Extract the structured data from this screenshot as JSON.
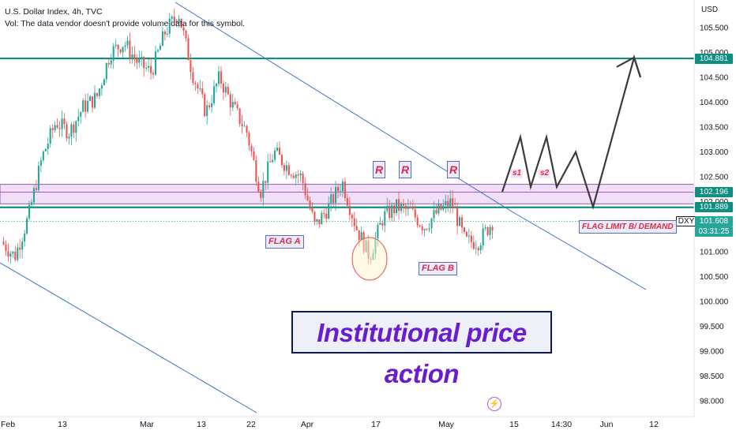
{
  "header": {
    "symbol_line": "U.S. Dollar Index, 4h, TVC",
    "volume_note": "Vol: The data vendor doesn't provide volume data for this symbol."
  },
  "currency_label": "USD",
  "price_tags": {
    "target": "104.881",
    "zone_top": "102.196",
    "flag_limit": "101.889",
    "symbol_short": "DXY",
    "last_price": "101.608",
    "countdown": "03:31:25"
  },
  "annotations": {
    "flag_a": "FLAG A",
    "flag_b": "FLAG B",
    "r1": "R",
    "r2": "R",
    "r3": "R",
    "s1": "s1",
    "s2": "s2",
    "flag_limit": "FLAG LIMIT B/ DEMAND",
    "title": "Institutional price action"
  },
  "colors": {
    "up_candle": "#26a69a",
    "down_candle": "#ef5350",
    "trendline": "#3d6fd1",
    "horizontal_level": "#0f8f7f",
    "zone_fill": "#e6c5f2",
    "zone_border": "#8a2fb0",
    "projection": "#3b3b3b",
    "label_text": "#e0284d",
    "title_text": "#6a1ccf"
  },
  "chart_data": {
    "type": "candlestick",
    "symbol": "U.S. Dollar Index",
    "timeframe": "4h",
    "currency": "USD",
    "ylim": [
      97.85,
      106.0
    ],
    "y_ticks": [
      "105.500",
      "105.000",
      "104.500",
      "104.000",
      "103.500",
      "103.000",
      "102.500",
      "102.000",
      "101.500",
      "101.000",
      "100.500",
      "100.000",
      "99.500",
      "99.000",
      "98.500",
      "98.000"
    ],
    "x_ticks": [
      "Feb",
      "13",
      "Mar",
      "13",
      "22",
      "Apr",
      "17",
      "May",
      "15",
      "14:30",
      "Jun",
      "12"
    ],
    "price_path": [
      {
        "date": "Feb 1",
        "close": 101.2
      },
      {
        "date": "Feb 2",
        "close": 100.9
      },
      {
        "date": "Feb 3",
        "close": 101.7
      },
      {
        "date": "Feb 6",
        "close": 102.9
      },
      {
        "date": "Feb 9",
        "close": 103.6
      },
      {
        "date": "Feb 13",
        "close": 103.4
      },
      {
        "date": "Feb 16",
        "close": 103.9
      },
      {
        "date": "Feb 20",
        "close": 104.1
      },
      {
        "date": "Feb 24",
        "close": 105.0
      },
      {
        "date": "Feb 27",
        "close": 105.2
      },
      {
        "date": "Mar 1",
        "close": 104.8
      },
      {
        "date": "Mar 3",
        "close": 104.6
      },
      {
        "date": "Mar 6",
        "close": 105.4
      },
      {
        "date": "Mar 8",
        "close": 105.8
      },
      {
        "date": "Mar 10",
        "close": 104.6
      },
      {
        "date": "Mar 13",
        "close": 103.8
      },
      {
        "date": "Mar 15",
        "close": 104.5
      },
      {
        "date": "Mar 17",
        "close": 103.9
      },
      {
        "date": "Mar 20",
        "close": 103.4
      },
      {
        "date": "Mar 22",
        "close": 102.2
      },
      {
        "date": "Mar 24",
        "close": 103.0
      },
      {
        "date": "Mar 28",
        "close": 102.7
      },
      {
        "date": "Mar 31",
        "close": 102.5
      },
      {
        "date": "Apr 3",
        "close": 101.5
      },
      {
        "date": "Apr 5",
        "close": 101.9
      },
      {
        "date": "Apr 10",
        "close": 102.4
      },
      {
        "date": "Apr 12",
        "close": 101.5
      },
      {
        "date": "Apr 14",
        "close": 100.9
      },
      {
        "date": "Apr 17",
        "close": 101.7
      },
      {
        "date": "Apr 20",
        "close": 101.9
      },
      {
        "date": "Apr 24",
        "close": 101.8
      },
      {
        "date": "Apr 27",
        "close": 101.5
      },
      {
        "date": "Apr 30",
        "close": 101.8
      },
      {
        "date": "May 3",
        "close": 102.0
      },
      {
        "date": "May 5",
        "close": 101.2
      },
      {
        "date": "May 8",
        "close": 101.2
      },
      {
        "date": "May 11",
        "close": 101.6
      }
    ],
    "horizontal_levels": [
      104.881,
      101.889
    ],
    "zone": [
      101.96,
      102.35
    ],
    "last_price": 101.608,
    "projection_path": [
      102.2,
      103.3,
      102.3,
      103.3,
      102.3,
      103.0,
      101.9,
      104.9,
      104.5
    ],
    "projection_labels": [
      "s1",
      "s2"
    ],
    "annotation_labels": [
      "FLAG A",
      "FLAG B",
      "R",
      "R",
      "R",
      "FLAG LIMIT B/ DEMAND",
      "Institutional price action"
    ]
  }
}
